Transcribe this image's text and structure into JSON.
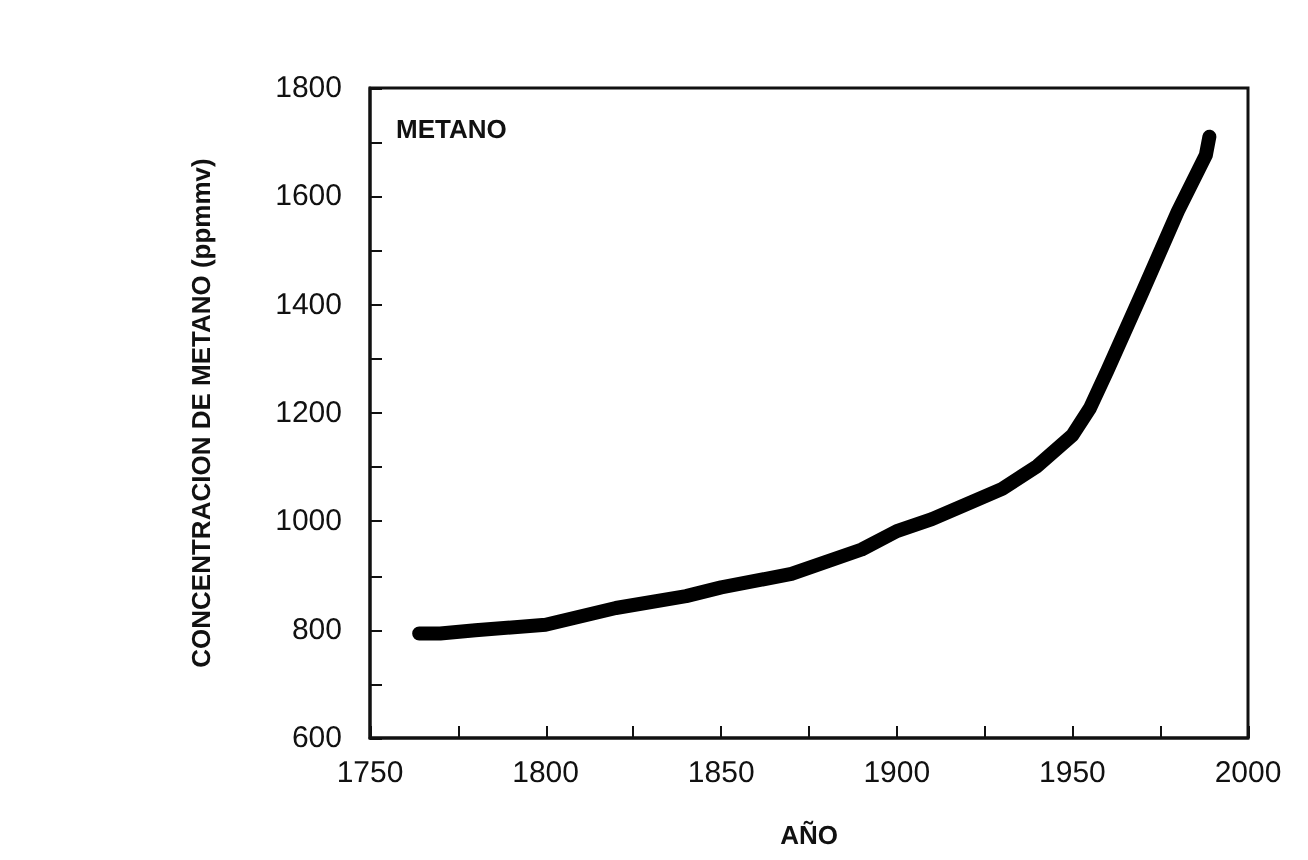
{
  "chart_data": {
    "type": "line",
    "xlabel": "AÑO",
    "ylabel": "CONCENTRACION DE METANO (ppmmv)",
    "annotations": [
      "METANO"
    ],
    "x": [
      1764,
      1770,
      1780,
      1800,
      1820,
      1840,
      1850,
      1870,
      1890,
      1900,
      1910,
      1930,
      1940,
      1950,
      1955,
      1960,
      1970,
      1980,
      1988,
      1989
    ],
    "series": [
      {
        "color": "#000000",
        "values": [
          793,
          793,
          799,
          809,
          840,
          862,
          878,
          903,
          948,
          982,
          1004,
          1060,
          1102,
          1159,
          1209,
          1279,
          1424,
          1572,
          1676,
          1710
        ]
      }
    ],
    "xlim": [
      1750,
      2000
    ],
    "xticks": [
      1750,
      1800,
      1850,
      1900,
      1950,
      2000
    ],
    "ylim": [
      600,
      1800
    ],
    "yticks": [
      600,
      800,
      1000,
      1200,
      1400,
      1600,
      1800
    ],
    "grid": false,
    "line_style": "solid"
  }
}
